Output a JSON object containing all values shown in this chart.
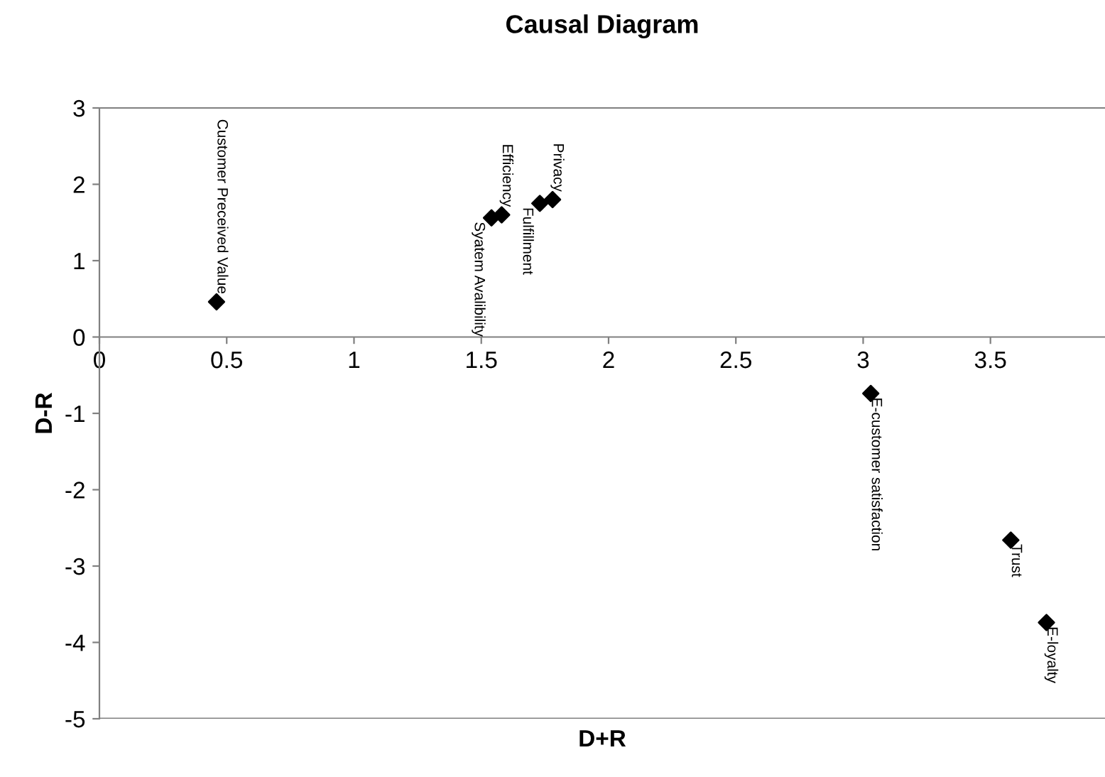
{
  "chart_data": {
    "type": "scatter",
    "title": "Causal Diagram",
    "xlabel": "D+R",
    "ylabel": "D-R",
    "x": [
      0.46,
      1.54,
      1.58,
      1.73,
      1.78,
      3.03,
      3.58,
      3.72
    ],
    "values": [
      0.46,
      1.56,
      1.6,
      1.75,
      1.8,
      -0.74,
      -2.66,
      -3.74
    ],
    "colors": [
      "#000000",
      "#000000",
      "#000000",
      "#000000",
      "#000000",
      "#000000",
      "#000000",
      "#000000"
    ],
    "annotations": [
      {
        "text": "Customer Preceived Value",
        "x": 0.46,
        "y": 0.46
      },
      {
        "text": "Syatem Avalibility",
        "x": 1.54,
        "y": 1.56
      },
      {
        "text": "Efficiency",
        "x": 1.58,
        "y": 1.6
      },
      {
        "text": "Fulfillment",
        "x": 1.73,
        "y": 1.75
      },
      {
        "text": "Privacy",
        "x": 1.78,
        "y": 1.8
      },
      {
        "text": "E-customer satisfaction",
        "x": 3.03,
        "y": -0.74
      },
      {
        "text": "Trust",
        "x": 3.58,
        "y": -2.66
      },
      {
        "text": "E-loyalty",
        "x": 3.72,
        "y": -3.74
      }
    ],
    "xlim": [
      0,
      3.95
    ],
    "xticks": [
      0,
      0.5,
      1,
      1.5,
      2,
      2.5,
      3,
      3.5
    ],
    "ylim": [
      -5,
      3
    ],
    "yticks": [
      -5,
      -4,
      -3,
      -2,
      -1,
      0,
      1,
      2,
      3
    ],
    "marker": "diamond",
    "grid": false,
    "legend": false
  }
}
